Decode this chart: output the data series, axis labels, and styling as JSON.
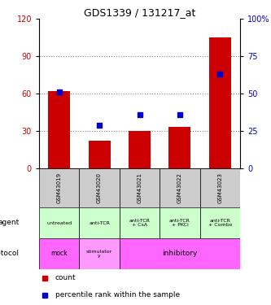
{
  "title": "GDS1339 / 131217_at",
  "samples": [
    "GSM43019",
    "GSM43020",
    "GSM43021",
    "GSM43022",
    "GSM43023"
  ],
  "counts": [
    62,
    22,
    30,
    33,
    105
  ],
  "percentile_ranks": [
    51,
    29,
    36,
    36,
    63
  ],
  "bar_color": "#cc0000",
  "dot_color": "#0000cc",
  "left_color": "#cc0000",
  "right_color": "#0000cc",
  "agent_labels": [
    "untreated",
    "anti-TCR",
    "anti-TCR\n+ CsA",
    "anti-TCR\n+ PKCi",
    "anti-TCR\n+ Combo"
  ],
  "agent_bg": "#ccffcc",
  "protocol_bg": "#ff66ff",
  "protocol_stimulatory_bg": "#ff99ff",
  "sample_header_bg": "#cccccc",
  "dotted_line_color": "#888888",
  "legend_count_color": "#cc0000",
  "legend_pct_color": "#0000cc"
}
